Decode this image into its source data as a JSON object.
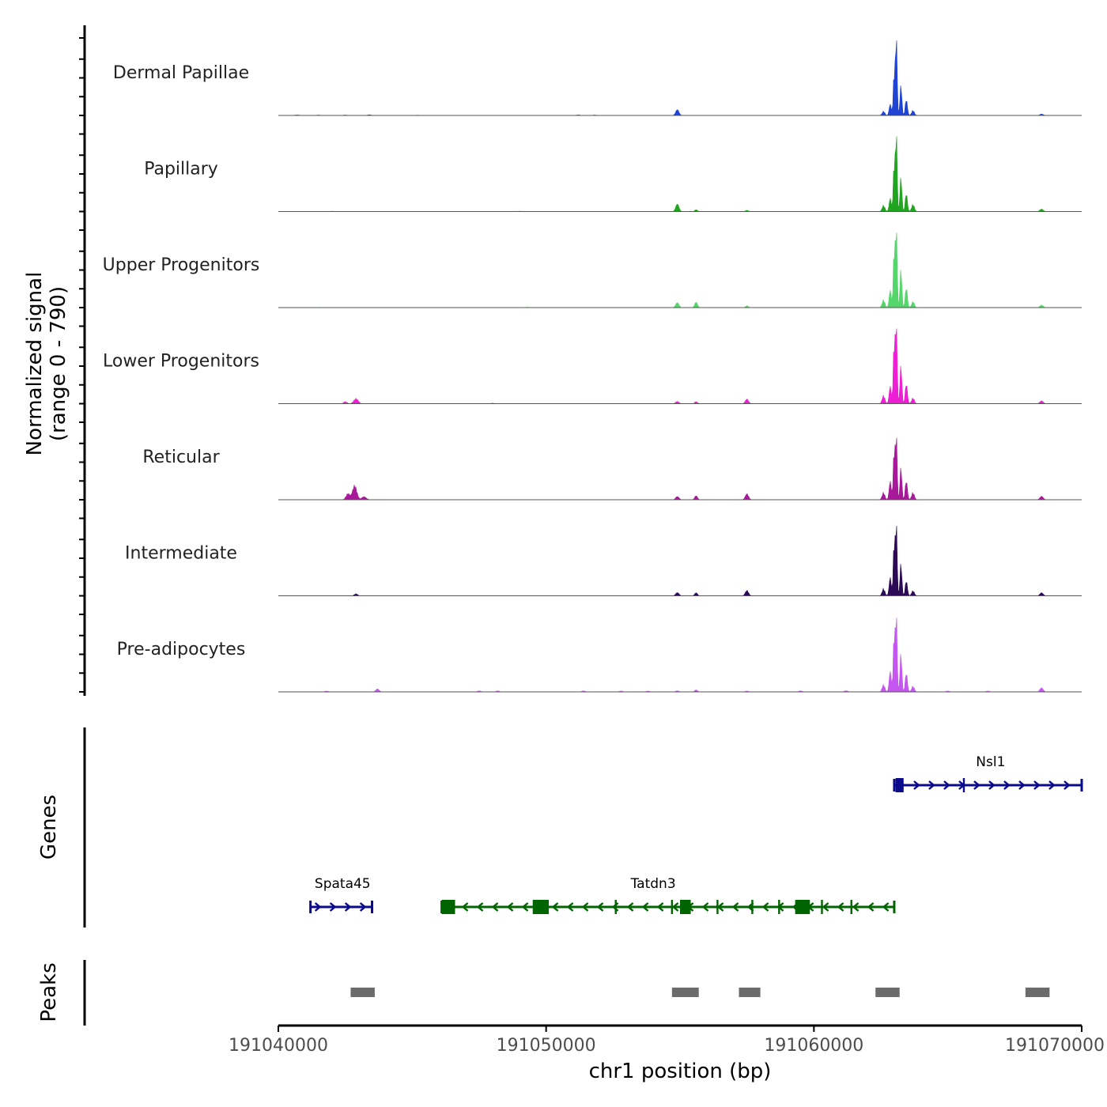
{
  "chart_data": {
    "type": "area",
    "chromosome": "chr1",
    "xlabel": "chr1 position (bp)",
    "xlim": [
      191040000,
      191070000
    ],
    "xticks": [
      191040000,
      191050000,
      191060000,
      191070000
    ],
    "xtick_labels": [
      "191040000",
      "191050000",
      "191060000",
      "191070000"
    ],
    "coverage_ylabel_line1": "Normalized signal",
    "coverage_ylabel_line2": "(range 0 - 790)",
    "ylim": [
      0,
      790
    ],
    "tracks": [
      {
        "name": "Dermal Papillae",
        "color": "#1f44d4",
        "peaks": [
          [
            191040700,
            5,
            70
          ],
          [
            191041500,
            4,
            60
          ],
          [
            191042500,
            4,
            60
          ],
          [
            191043400,
            6,
            70
          ],
          [
            191045200,
            3,
            60
          ],
          [
            191051200,
            5,
            70
          ],
          [
            191051800,
            4,
            60
          ],
          [
            191054900,
            58,
            60
          ],
          [
            191062600,
            40,
            50
          ],
          [
            191062850,
            110,
            40
          ],
          [
            191063000,
            440,
            35
          ],
          [
            191063080,
            780,
            30
          ],
          [
            191063250,
            300,
            35
          ],
          [
            191063450,
            160,
            40
          ],
          [
            191063700,
            50,
            50
          ],
          [
            191068500,
            14,
            60
          ]
        ]
      },
      {
        "name": "Papillary",
        "color": "#21a521",
        "peaks": [
          [
            191042000,
            3,
            60
          ],
          [
            191049000,
            3,
            60
          ],
          [
            191054900,
            75,
            60
          ],
          [
            191055600,
            18,
            50
          ],
          [
            191057500,
            12,
            50
          ],
          [
            191062600,
            60,
            50
          ],
          [
            191062850,
            130,
            40
          ],
          [
            191063000,
            500,
            35
          ],
          [
            191063080,
            750,
            30
          ],
          [
            191063250,
            340,
            35
          ],
          [
            191063450,
            180,
            40
          ],
          [
            191063700,
            70,
            50
          ],
          [
            191068500,
            24,
            60
          ]
        ]
      },
      {
        "name": "Upper Progenitors",
        "color": "#55d66a",
        "peaks": [
          [
            191041500,
            3,
            60
          ],
          [
            191049300,
            4,
            60
          ],
          [
            191054900,
            50,
            60
          ],
          [
            191055600,
            55,
            50
          ],
          [
            191057500,
            18,
            50
          ],
          [
            191062600,
            75,
            50
          ],
          [
            191062850,
            170,
            40
          ],
          [
            191063000,
            600,
            35
          ],
          [
            191063080,
            790,
            30
          ],
          [
            191063250,
            380,
            35
          ],
          [
            191063450,
            200,
            40
          ],
          [
            191063700,
            60,
            50
          ],
          [
            191068500,
            24,
            60
          ]
        ]
      },
      {
        "name": "Lower Progenitors",
        "color": "#ed1ed3",
        "peaks": [
          [
            191042500,
            20,
            60
          ],
          [
            191042900,
            50,
            80
          ],
          [
            191048000,
            5,
            60
          ],
          [
            191054900,
            22,
            60
          ],
          [
            191055600,
            20,
            50
          ],
          [
            191057500,
            45,
            60
          ],
          [
            191062600,
            80,
            50
          ],
          [
            191062850,
            170,
            40
          ],
          [
            191063000,
            640,
            35
          ],
          [
            191063080,
            790,
            30
          ],
          [
            191063250,
            380,
            35
          ],
          [
            191063450,
            200,
            40
          ],
          [
            191063700,
            55,
            50
          ],
          [
            191068500,
            28,
            60
          ]
        ]
      },
      {
        "name": "Reticular",
        "color": "#a8189a",
        "peaks": [
          [
            191042600,
            60,
            70
          ],
          [
            191042850,
            140,
            80
          ],
          [
            191043200,
            30,
            80
          ],
          [
            191054900,
            32,
            60
          ],
          [
            191055600,
            40,
            50
          ],
          [
            191057500,
            58,
            60
          ],
          [
            191062600,
            70,
            50
          ],
          [
            191062850,
            180,
            40
          ],
          [
            191063000,
            520,
            35
          ],
          [
            191063080,
            600,
            30
          ],
          [
            191063250,
            320,
            35
          ],
          [
            191063450,
            190,
            40
          ],
          [
            191063700,
            70,
            50
          ],
          [
            191068500,
            34,
            60
          ]
        ]
      },
      {
        "name": "Intermediate",
        "color": "#2d0a55",
        "peaks": [
          [
            191042900,
            20,
            60
          ],
          [
            191054900,
            32,
            60
          ],
          [
            191055600,
            30,
            50
          ],
          [
            191057500,
            52,
            60
          ],
          [
            191062600,
            70,
            50
          ],
          [
            191062850,
            180,
            40
          ],
          [
            191063000,
            560,
            35
          ],
          [
            191063080,
            680,
            30
          ],
          [
            191063250,
            320,
            35
          ],
          [
            191063450,
            150,
            40
          ],
          [
            191063700,
            50,
            50
          ],
          [
            191068500,
            30,
            60
          ]
        ]
      },
      {
        "name": "Pre-adipocytes",
        "color": "#c656f0",
        "peaks": [
          [
            191041800,
            8,
            60
          ],
          [
            191043700,
            30,
            60
          ],
          [
            191047500,
            10,
            60
          ],
          [
            191048200,
            10,
            60
          ],
          [
            191051400,
            10,
            60
          ],
          [
            191052800,
            8,
            60
          ],
          [
            191053800,
            8,
            60
          ],
          [
            191054900,
            10,
            60
          ],
          [
            191055600,
            20,
            50
          ],
          [
            191057500,
            8,
            60
          ],
          [
            191059500,
            10,
            60
          ],
          [
            191061200,
            12,
            60
          ],
          [
            191062600,
            70,
            50
          ],
          [
            191062850,
            200,
            40
          ],
          [
            191063000,
            600,
            35
          ],
          [
            191063080,
            720,
            30
          ],
          [
            191063250,
            380,
            35
          ],
          [
            191063450,
            190,
            40
          ],
          [
            191063700,
            55,
            50
          ],
          [
            191065000,
            8,
            60
          ],
          [
            191066500,
            8,
            60
          ],
          [
            191068500,
            40,
            60
          ]
        ]
      }
    ],
    "genes_label": "Genes",
    "genes": [
      {
        "name": "Nsl1",
        "strand": "+",
        "color": "#0a0a8c",
        "start": 191063000,
        "end": 191070000,
        "exons": [
          [
            191063050,
            191063350
          ]
        ],
        "introns_marks": [
          191065600
        ]
      },
      {
        "name": "Spata45",
        "strand": "+",
        "color": "#0a0a8c",
        "start": 191041200,
        "end": 191043500,
        "exons": [],
        "introns_marks": []
      },
      {
        "name": "Tatdn3",
        "strand": "-",
        "color": "#006400",
        "start": 191046100,
        "end": 191063000,
        "exons": [
          [
            191046100,
            191046600
          ],
          [
            191049500,
            191050100
          ],
          [
            191055000,
            191055400
          ],
          [
            191059300,
            191059850
          ]
        ],
        "introns_marks": [
          191052600,
          191054700,
          191056400,
          191057700,
          191058700,
          191060300,
          191061400
        ]
      }
    ],
    "peaks_label": "Peaks",
    "peak_regions": [
      [
        191042700,
        191043600
      ],
      [
        191054700,
        191055700
      ],
      [
        191057200,
        191058000
      ],
      [
        191062300,
        191063200
      ],
      [
        191067900,
        191068800
      ]
    ]
  }
}
